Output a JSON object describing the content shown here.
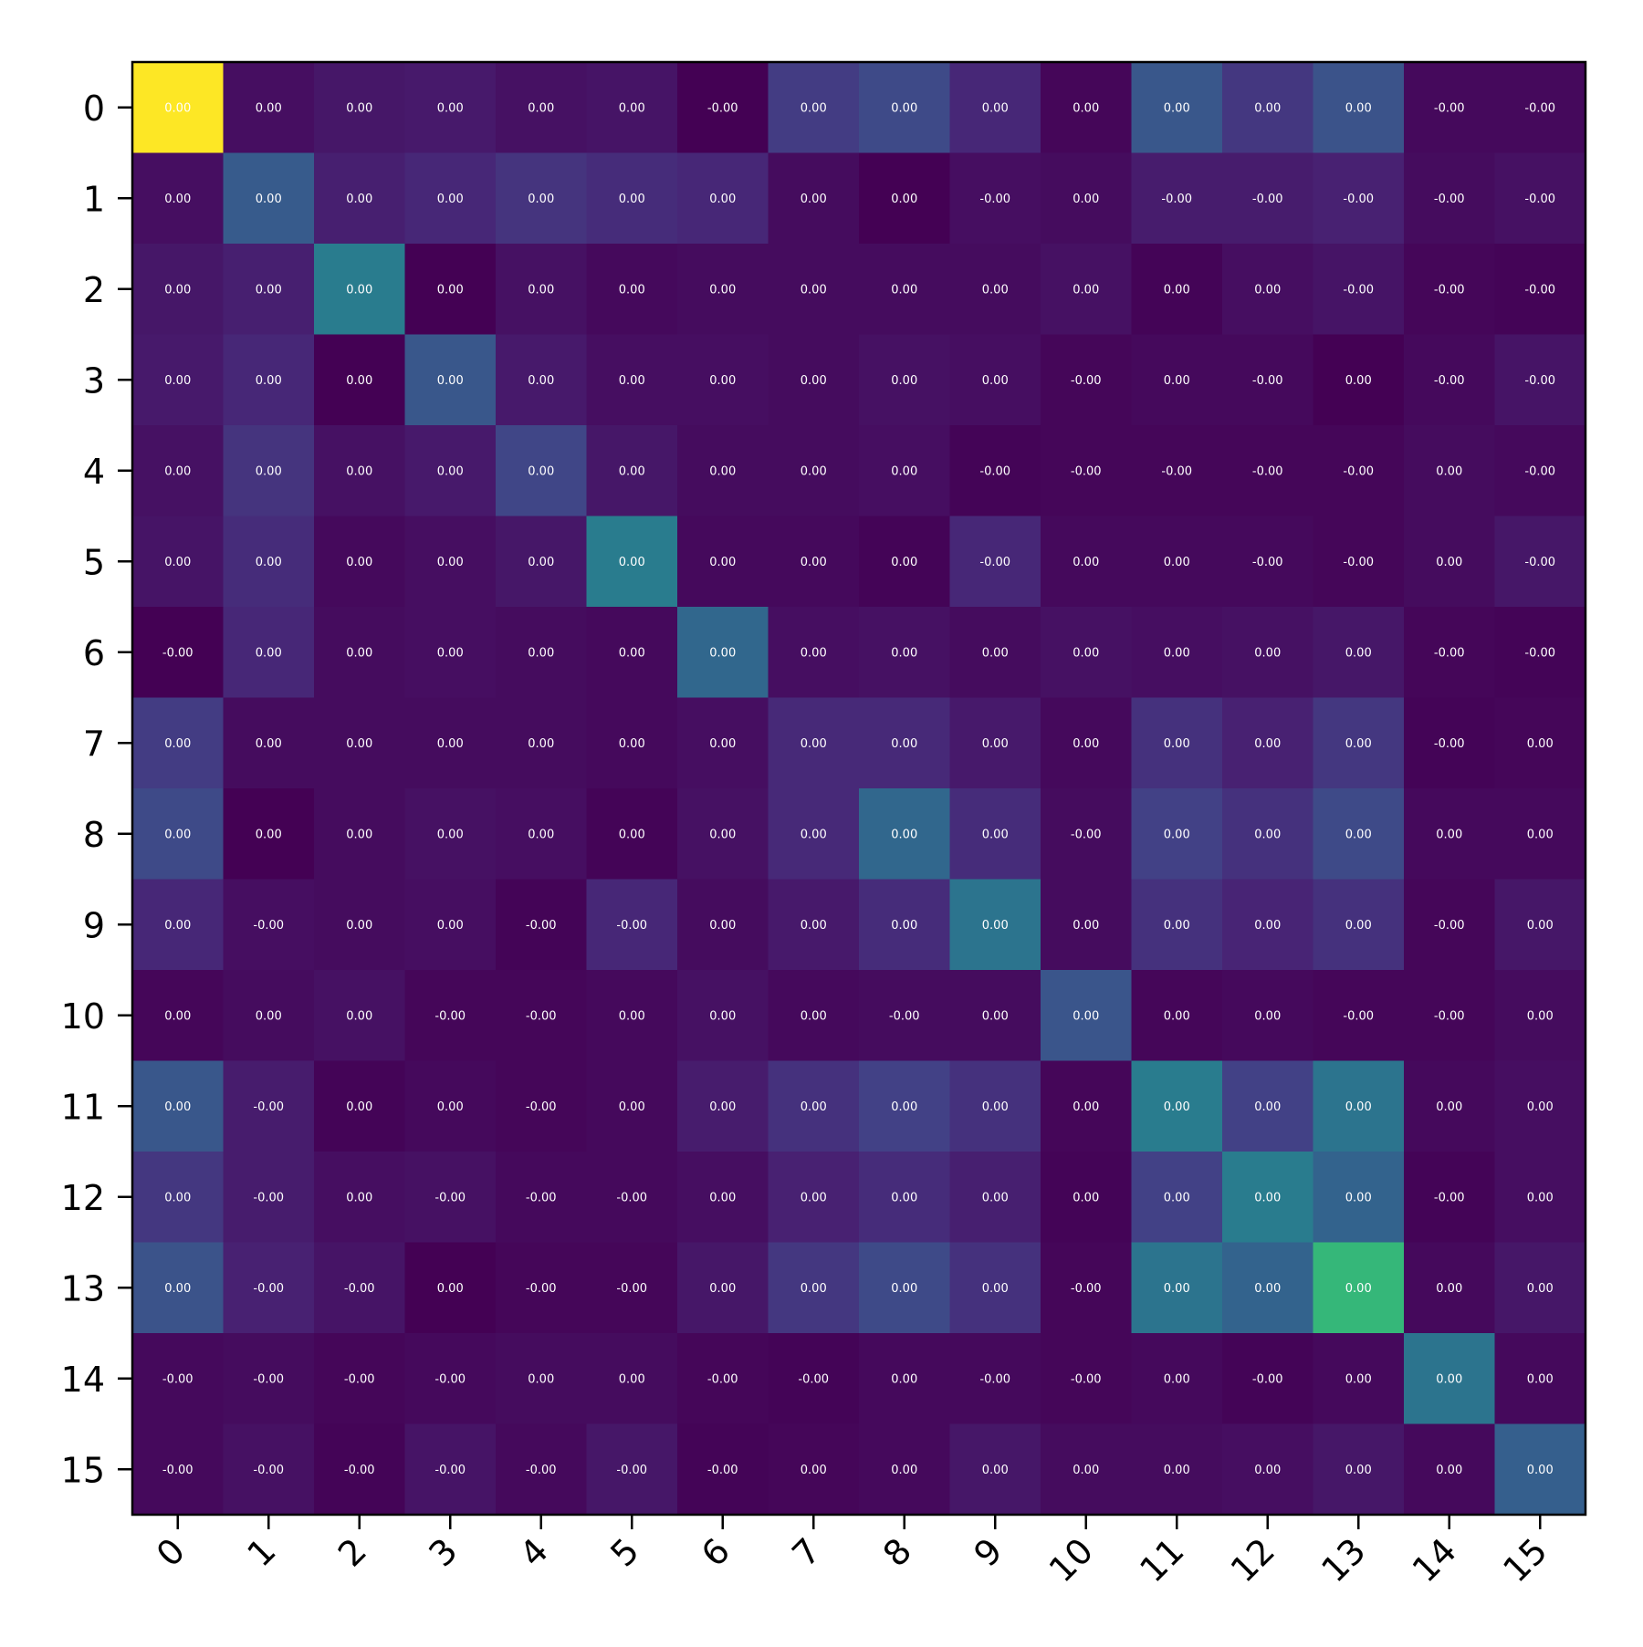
{
  "chart_data": {
    "type": "heatmap",
    "title": "",
    "xlabel": "",
    "ylabel": "",
    "x_tick_labels": [
      "0",
      "1",
      "2",
      "3",
      "4",
      "5",
      "6",
      "7",
      "8",
      "9",
      "10",
      "11",
      "12",
      "13",
      "14",
      "15"
    ],
    "y_tick_labels": [
      "0",
      "1",
      "2",
      "3",
      "4",
      "5",
      "6",
      "7",
      "8",
      "9",
      "10",
      "11",
      "12",
      "13",
      "14",
      "15"
    ],
    "colormap": "viridis",
    "value_range": [
      0,
      1
    ],
    "intensity": [
      [
        1.0,
        0.05,
        0.08,
        0.09,
        0.06,
        0.07,
        0.0,
        0.22,
        0.28,
        0.14,
        0.02,
        0.34,
        0.2,
        0.32,
        0.03,
        0.03
      ],
      [
        0.05,
        0.36,
        0.11,
        0.14,
        0.19,
        0.16,
        0.14,
        0.04,
        0.0,
        0.05,
        0.04,
        0.1,
        0.1,
        0.12,
        0.04,
        0.06
      ],
      [
        0.08,
        0.11,
        0.52,
        0.0,
        0.06,
        0.03,
        0.04,
        0.04,
        0.04,
        0.04,
        0.06,
        0.01,
        0.05,
        0.07,
        0.02,
        0.01
      ],
      [
        0.09,
        0.14,
        0.0,
        0.34,
        0.09,
        0.05,
        0.05,
        0.04,
        0.06,
        0.05,
        0.02,
        0.03,
        0.03,
        0.0,
        0.03,
        0.07
      ],
      [
        0.06,
        0.19,
        0.06,
        0.09,
        0.26,
        0.08,
        0.04,
        0.04,
        0.05,
        0.01,
        0.02,
        0.02,
        0.02,
        0.02,
        0.04,
        0.03
      ],
      [
        0.07,
        0.16,
        0.03,
        0.05,
        0.08,
        0.52,
        0.03,
        0.03,
        0.01,
        0.14,
        0.03,
        0.03,
        0.03,
        0.02,
        0.04,
        0.08
      ],
      [
        0.0,
        0.14,
        0.04,
        0.05,
        0.04,
        0.03,
        0.42,
        0.05,
        0.06,
        0.04,
        0.06,
        0.05,
        0.06,
        0.08,
        0.02,
        0.01
      ],
      [
        0.22,
        0.04,
        0.04,
        0.04,
        0.04,
        0.03,
        0.05,
        0.15,
        0.15,
        0.09,
        0.03,
        0.18,
        0.12,
        0.2,
        0.01,
        0.02
      ],
      [
        0.28,
        0.0,
        0.04,
        0.06,
        0.05,
        0.01,
        0.06,
        0.15,
        0.42,
        0.16,
        0.04,
        0.24,
        0.18,
        0.28,
        0.03,
        0.03
      ],
      [
        0.14,
        0.05,
        0.04,
        0.05,
        0.01,
        0.14,
        0.04,
        0.09,
        0.16,
        0.48,
        0.04,
        0.18,
        0.13,
        0.18,
        0.02,
        0.08
      ],
      [
        0.02,
        0.04,
        0.06,
        0.02,
        0.02,
        0.03,
        0.06,
        0.03,
        0.04,
        0.04,
        0.33,
        0.02,
        0.03,
        0.02,
        0.02,
        0.04
      ],
      [
        0.34,
        0.1,
        0.01,
        0.03,
        0.02,
        0.03,
        0.1,
        0.18,
        0.24,
        0.18,
        0.02,
        0.52,
        0.24,
        0.48,
        0.03,
        0.05
      ],
      [
        0.2,
        0.1,
        0.05,
        0.06,
        0.03,
        0.03,
        0.05,
        0.12,
        0.16,
        0.11,
        0.01,
        0.24,
        0.52,
        0.4,
        0.01,
        0.05
      ],
      [
        0.32,
        0.12,
        0.07,
        0.0,
        0.02,
        0.02,
        0.08,
        0.2,
        0.28,
        0.18,
        0.02,
        0.48,
        0.4,
        0.75,
        0.03,
        0.08
      ],
      [
        0.03,
        0.04,
        0.02,
        0.03,
        0.04,
        0.04,
        0.02,
        0.01,
        0.03,
        0.03,
        0.02,
        0.03,
        0.01,
        0.03,
        0.48,
        0.03
      ],
      [
        0.03,
        0.06,
        0.01,
        0.07,
        0.03,
        0.08,
        0.01,
        0.02,
        0.03,
        0.08,
        0.04,
        0.04,
        0.05,
        0.08,
        0.03,
        0.38
      ]
    ],
    "cell_labels": [
      [
        "0.00",
        "0.00",
        "0.00",
        "0.00",
        "0.00",
        "0.00",
        "-0.00",
        "0.00",
        "0.00",
        "0.00",
        "0.00",
        "0.00",
        "0.00",
        "0.00",
        "-0.00",
        "-0.00"
      ],
      [
        "0.00",
        "0.00",
        "0.00",
        "0.00",
        "0.00",
        "0.00",
        "0.00",
        "0.00",
        "0.00",
        "-0.00",
        "0.00",
        "-0.00",
        "-0.00",
        "-0.00",
        "-0.00",
        "-0.00"
      ],
      [
        "0.00",
        "0.00",
        "0.00",
        "0.00",
        "0.00",
        "0.00",
        "0.00",
        "0.00",
        "0.00",
        "0.00",
        "0.00",
        "0.00",
        "0.00",
        "-0.00",
        "-0.00",
        "-0.00"
      ],
      [
        "0.00",
        "0.00",
        "0.00",
        "0.00",
        "0.00",
        "0.00",
        "0.00",
        "0.00",
        "0.00",
        "0.00",
        "-0.00",
        "0.00",
        "-0.00",
        "0.00",
        "-0.00",
        "-0.00"
      ],
      [
        "0.00",
        "0.00",
        "0.00",
        "0.00",
        "0.00",
        "0.00",
        "0.00",
        "0.00",
        "0.00",
        "-0.00",
        "-0.00",
        "-0.00",
        "-0.00",
        "-0.00",
        "0.00",
        "-0.00"
      ],
      [
        "0.00",
        "0.00",
        "0.00",
        "0.00",
        "0.00",
        "0.00",
        "0.00",
        "0.00",
        "0.00",
        "-0.00",
        "0.00",
        "0.00",
        "-0.00",
        "-0.00",
        "0.00",
        "-0.00"
      ],
      [
        "-0.00",
        "0.00",
        "0.00",
        "0.00",
        "0.00",
        "0.00",
        "0.00",
        "0.00",
        "0.00",
        "0.00",
        "0.00",
        "0.00",
        "0.00",
        "0.00",
        "-0.00",
        "-0.00"
      ],
      [
        "0.00",
        "0.00",
        "0.00",
        "0.00",
        "0.00",
        "0.00",
        "0.00",
        "0.00",
        "0.00",
        "0.00",
        "0.00",
        "0.00",
        "0.00",
        "0.00",
        "-0.00",
        "0.00"
      ],
      [
        "0.00",
        "0.00",
        "0.00",
        "0.00",
        "0.00",
        "0.00",
        "0.00",
        "0.00",
        "0.00",
        "0.00",
        "-0.00",
        "0.00",
        "0.00",
        "0.00",
        "0.00",
        "0.00"
      ],
      [
        "0.00",
        "-0.00",
        "0.00",
        "0.00",
        "-0.00",
        "-0.00",
        "0.00",
        "0.00",
        "0.00",
        "0.00",
        "0.00",
        "0.00",
        "0.00",
        "0.00",
        "-0.00",
        "0.00"
      ],
      [
        "0.00",
        "0.00",
        "0.00",
        "-0.00",
        "-0.00",
        "0.00",
        "0.00",
        "0.00",
        "-0.00",
        "0.00",
        "0.00",
        "0.00",
        "0.00",
        "-0.00",
        "-0.00",
        "0.00"
      ],
      [
        "0.00",
        "-0.00",
        "0.00",
        "0.00",
        "-0.00",
        "0.00",
        "0.00",
        "0.00",
        "0.00",
        "0.00",
        "0.00",
        "0.00",
        "0.00",
        "0.00",
        "0.00",
        "0.00"
      ],
      [
        "0.00",
        "-0.00",
        "0.00",
        "-0.00",
        "-0.00",
        "-0.00",
        "0.00",
        "0.00",
        "0.00",
        "0.00",
        "0.00",
        "0.00",
        "0.00",
        "0.00",
        "-0.00",
        "0.00"
      ],
      [
        "0.00",
        "-0.00",
        "-0.00",
        "0.00",
        "-0.00",
        "-0.00",
        "0.00",
        "0.00",
        "0.00",
        "0.00",
        "-0.00",
        "0.00",
        "0.00",
        "0.00",
        "0.00",
        "0.00"
      ],
      [
        "-0.00",
        "-0.00",
        "-0.00",
        "-0.00",
        "0.00",
        "0.00",
        "-0.00",
        "-0.00",
        "0.00",
        "-0.00",
        "-0.00",
        "0.00",
        "-0.00",
        "0.00",
        "0.00",
        "0.00"
      ],
      [
        "-0.00",
        "-0.00",
        "-0.00",
        "-0.00",
        "-0.00",
        "-0.00",
        "-0.00",
        "0.00",
        "0.00",
        "0.00",
        "0.00",
        "0.00",
        "0.00",
        "0.00",
        "0.00",
        "0.00"
      ]
    ],
    "grid": false,
    "legend": "none"
  }
}
